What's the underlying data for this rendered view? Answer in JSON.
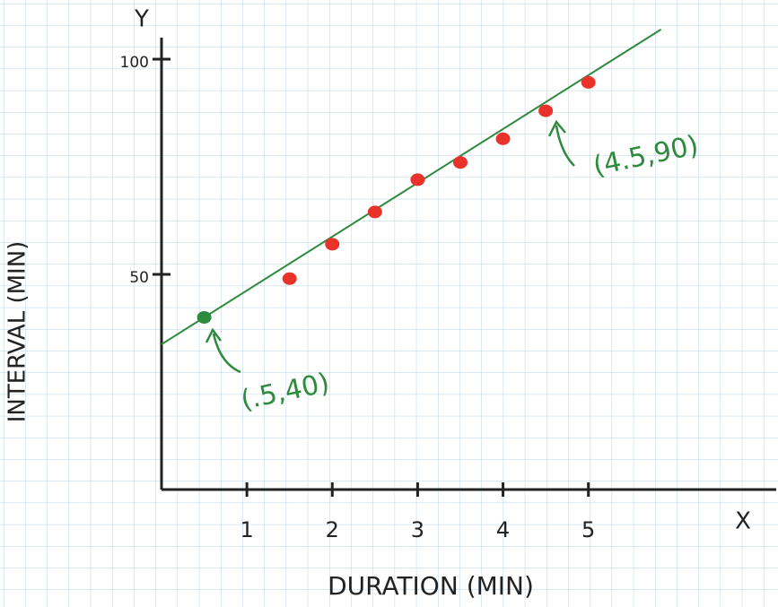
{
  "chart_data": {
    "type": "scatter",
    "x_label": "DURATION (MIN)",
    "y_label": "INTERVAL (MIN)",
    "x_axis_letter": "X",
    "y_axis_letter": "Y",
    "xlim": [
      0,
      7.2
    ],
    "ylim": [
      0,
      105
    ],
    "xticks": [
      1,
      2,
      3,
      4,
      5
    ],
    "yticks": [
      50,
      100
    ],
    "axis_color": "#222222",
    "series": [
      {
        "mode": "line",
        "color": "#2e8b3e",
        "x": [
          0,
          5.85
        ],
        "values": [
          33.75,
          106.9
        ]
      },
      {
        "mode": "markers",
        "color": "#e8322a",
        "x": [
          1.5,
          2,
          2.5,
          3,
          3.5,
          4,
          4.5,
          5
        ],
        "values": [
          49,
          57,
          64.5,
          72,
          76,
          81.5,
          88,
          94.6
        ]
      },
      {
        "mode": "markers",
        "color": "#2e8b3e",
        "x": [
          0.5
        ],
        "values": [
          40
        ]
      }
    ],
    "annotations": [
      "(.5,40)",
      "(4.5,90)"
    ]
  }
}
